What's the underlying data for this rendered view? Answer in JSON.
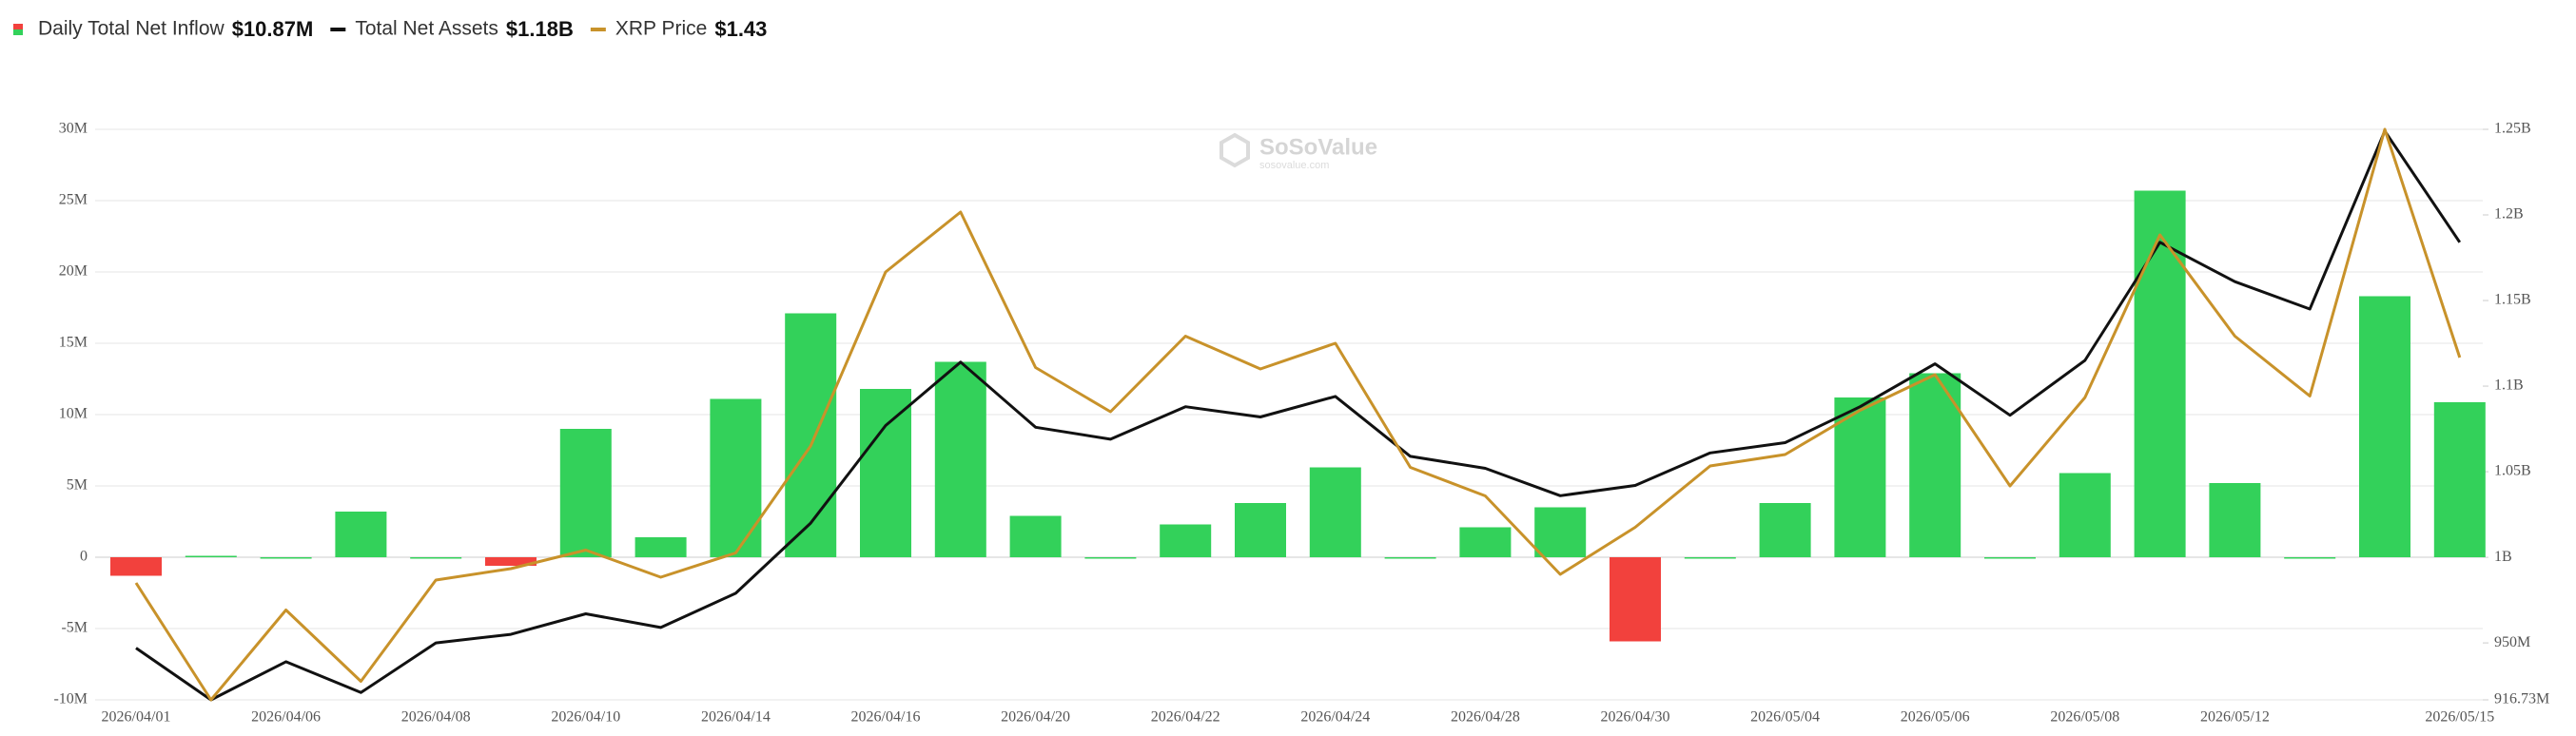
{
  "chart_data": {
    "type": "combo",
    "watermark": "SoSoValue",
    "watermark_sub": "sosovalue.com",
    "categories": [
      "2026/04/01",
      null,
      "2026/04/06",
      null,
      "2026/04/08",
      null,
      "2026/04/10",
      null,
      "2026/04/14",
      null,
      "2026/04/16",
      null,
      "2026/04/20",
      null,
      "2026/04/22",
      null,
      "2026/04/24",
      null,
      "2026/04/28",
      null,
      "2026/04/30",
      null,
      "2026/05/04",
      null,
      "2026/05/06",
      null,
      "2026/05/08",
      null,
      "2026/05/12",
      null,
      null,
      "2026/05/15"
    ],
    "series": [
      {
        "name": "Daily Total Net Inflow",
        "latest_label": "$10.87M",
        "type": "bar",
        "color": "#33d15a",
        "negative_color": "#f2413d",
        "values": [
          -1.3,
          0.1,
          0,
          3.2,
          0,
          -0.6,
          9.0,
          1.4,
          11.1,
          17.1,
          11.8,
          13.7,
          2.9,
          0,
          2.3,
          3.8,
          6.3,
          0,
          2.1,
          3.5,
          -5.9,
          0,
          3.8,
          11.2,
          12.9,
          0,
          5.9,
          25.7,
          5.2,
          0,
          18.3,
          10.87
        ]
      },
      {
        "name": "Total Net Assets",
        "latest_label": "$1.18B",
        "type": "line",
        "axis": "y2",
        "color": "#111111",
        "values": [
          947,
          916.73,
          939,
          921,
          950,
          955,
          967,
          959,
          979,
          1020,
          1077,
          1114,
          1076,
          1069,
          1088,
          1082,
          1094,
          1059,
          1052,
          1036,
          1042,
          1061,
          1067,
          1088,
          1113,
          1083,
          1115,
          1184,
          1161,
          1145,
          1249,
          1184
        ]
      },
      {
        "name": "XRP Price",
        "latest_label": "$1.43",
        "type": "line",
        "axis": "hidden",
        "color": "#c8922a",
        "values": [
          1.272,
          1.19,
          1.253,
          1.203,
          1.274,
          1.282,
          1.295,
          1.276,
          1.293,
          1.368,
          1.49,
          1.532,
          1.423,
          1.392,
          1.445,
          1.422,
          1.44,
          1.353,
          1.333,
          1.278,
          1.311,
          1.354,
          1.362,
          1.393,
          1.418,
          1.34,
          1.402,
          1.516,
          1.445,
          1.403,
          1.59,
          1.43
        ]
      }
    ],
    "ylim": [
      -10,
      30
    ],
    "yticks": [
      {
        "value": -10,
        "label": "-10M"
      },
      {
        "value": -5,
        "label": "-5M"
      },
      0,
      {
        "value": 5,
        "label": "5M"
      },
      {
        "value": 10,
        "label": "10M"
      },
      {
        "value": 15,
        "label": "15M"
      },
      {
        "value": 20,
        "label": "20M"
      },
      {
        "value": 25,
        "label": "25M"
      },
      {
        "value": 30,
        "label": "30M"
      }
    ],
    "y2lim": [
      916.73,
      1250
    ],
    "y2ticks": [
      {
        "value": 916.73,
        "label": "916.73M"
      },
      {
        "value": 950,
        "label": "950M"
      },
      {
        "value": 1000,
        "label": "1B"
      },
      {
        "value": 1050,
        "label": "1.05B"
      },
      {
        "value": 1100,
        "label": "1.1B"
      },
      {
        "value": 1150,
        "label": "1.15B"
      },
      {
        "value": 1200,
        "label": "1.2B"
      },
      {
        "value": 1250,
        "label": "1.25B"
      }
    ],
    "grid": true
  }
}
